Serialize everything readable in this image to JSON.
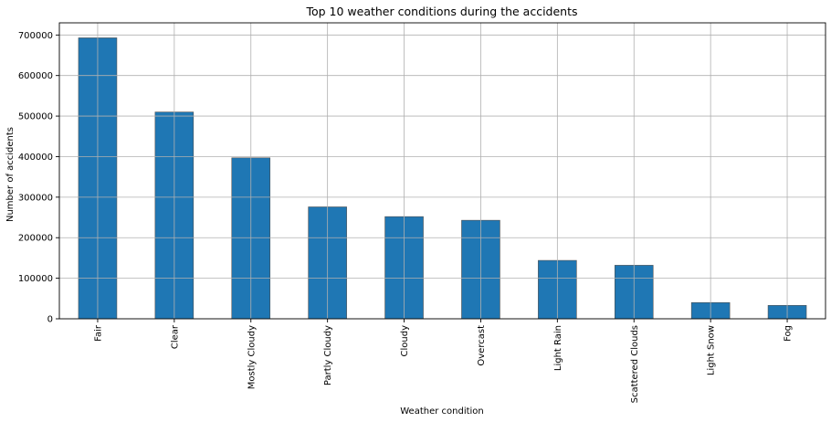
{
  "chart_data": {
    "type": "bar",
    "title": "Top 10 weather conditions during the accidents",
    "xlabel": "Weather condition",
    "ylabel": "Number of accidents",
    "categories": [
      "Fair",
      "Clear",
      "Mostly Cloudy",
      "Partly Cloudy",
      "Cloudy",
      "Overcast",
      "Light Rain",
      "Scattered Clouds",
      "Light Snow",
      "Fog"
    ],
    "values": [
      693000,
      510000,
      397000,
      276000,
      252000,
      243000,
      144000,
      132000,
      40000,
      33000
    ],
    "ylim": [
      0,
      730000
    ],
    "yticks": [
      0,
      100000,
      200000,
      300000,
      400000,
      500000,
      600000,
      700000
    ],
    "grid": true,
    "bar_color": "#1f77b4",
    "legend": "none"
  }
}
